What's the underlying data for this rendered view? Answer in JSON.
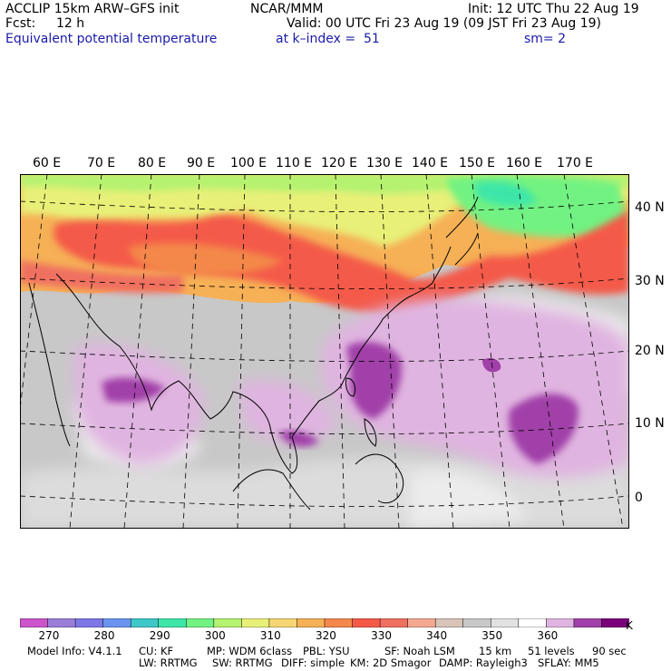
{
  "header": {
    "line1_left": "ACCLIP 15km ARW–GFS init",
    "line1_center": "NCAR/MMM",
    "line1_right": "Init: 12 UTC Thu 22 Aug 19",
    "fcst_label": "Fcst:",
    "fcst_value": "12 h",
    "valid": "Valid: 00 UTC Fri 23 Aug 19 (09 JST Fri 23 Aug 19)",
    "field": "Equivalent potential temperature",
    "level": "at k–index =  51",
    "smooth": "sm= 2"
  },
  "map": {
    "projection": "Lambert conformal",
    "field_units": "K",
    "lon_labels": [
      "60 E",
      "70 E",
      "80 E",
      "90 E",
      "100 E",
      "110 E",
      "120 E",
      "130 E",
      "140 E",
      "150 E",
      "160 E",
      "170 E"
    ],
    "lat_labels": [
      "40 N",
      "30 N",
      "20 N",
      "10 N",
      "0"
    ]
  },
  "colorbar": {
    "colors": [
      "#cc55cc",
      "#9a7ed8",
      "#7d78e6",
      "#6a94f0",
      "#3ec8c8",
      "#3ee6a8",
      "#72f282",
      "#b4f270",
      "#e8f078",
      "#f6d672",
      "#f6b056",
      "#f4884a",
      "#f45a48",
      "#f07060",
      "#f4a890",
      "#d8c4b8",
      "#c8c8c8",
      "#e2e2e2",
      "#ffffff",
      "#e0b4e0",
      "#a040a8",
      "#7a007a"
    ],
    "labels": [
      "270",
      "280",
      "290",
      "300",
      "310",
      "320",
      "330",
      "340",
      "350",
      "360"
    ],
    "unit": "K"
  },
  "model_info": {
    "line1": [
      "Model Info: V4.1.1",
      "CU: KF",
      "MP: WDM 6class",
      "PBL: YSU",
      "SF: Noah LSM",
      "15 km",
      "51 levels",
      "90 sec"
    ],
    "line2": [
      "LW: RRTMG",
      "SW: RRTMG",
      "DIFF: simple",
      "KM: 2D Smagor",
      "DAMP: Rayleigh3",
      "SFLAY: MM5"
    ]
  }
}
